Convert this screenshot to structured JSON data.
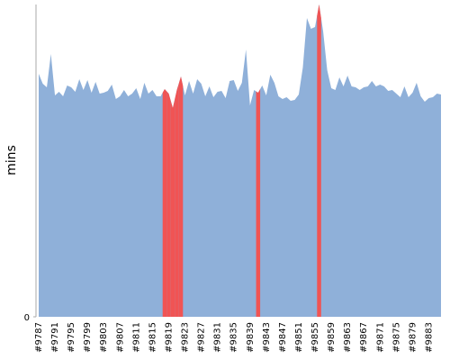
{
  "chart_data": {
    "type": "area",
    "ylabel": "mins",
    "categories": [
      "#9787",
      null,
      null,
      null,
      "#9791",
      null,
      null,
      null,
      "#9795",
      null,
      null,
      null,
      "#9799",
      null,
      null,
      null,
      "#9803",
      null,
      null,
      null,
      "#9807",
      null,
      null,
      null,
      "#9811",
      null,
      null,
      null,
      "#9815",
      null,
      null,
      null,
      "#9819",
      null,
      null,
      null,
      "#9823",
      null,
      null,
      null,
      "#9827",
      null,
      null,
      null,
      "#9831",
      null,
      null,
      null,
      "#9835",
      null,
      null,
      null,
      "#9839",
      null,
      null,
      null,
      "#9843",
      null,
      null,
      null,
      "#9847",
      null,
      null,
      null,
      "#9851",
      null,
      null,
      null,
      "#9855",
      null,
      null,
      null,
      "#9859",
      null,
      null,
      null,
      "#9863",
      null,
      null,
      null,
      "#9867",
      null,
      null,
      null,
      "#9871",
      null,
      null,
      null,
      "#9875",
      null,
      null,
      null,
      "#9879",
      null,
      null,
      null,
      "#9883",
      null,
      null,
      null
    ],
    "values": [
      270,
      259,
      255,
      292,
      246,
      250,
      245,
      257,
      255,
      250,
      264,
      252,
      263,
      249,
      261,
      248,
      249,
      251,
      258,
      242,
      245,
      252,
      245,
      248,
      254,
      242,
      260,
      248,
      252,
      245,
      245,
      253,
      248,
      232,
      252,
      267,
      246,
      262,
      248,
      264,
      259,
      245,
      256,
      244,
      250,
      251,
      243,
      262,
      263,
      251,
      260,
      297,
      235,
      252,
      249,
      257,
      246,
      269,
      260,
      245,
      242,
      244,
      240,
      241,
      247,
      277,
      332,
      320,
      322,
      347,
      317,
      274,
      254,
      252,
      266,
      256,
      268,
      256,
      255,
      252,
      255,
      256,
      262,
      256,
      258,
      256,
      251,
      252,
      248,
      244,
      256,
      244,
      249,
      260,
      245,
      239,
      243,
      244,
      248,
      247
    ],
    "colors": [
      "#8fb0d9",
      "#8fb0d9",
      "#8fb0d9",
      "#8fb0d9",
      "#8fb0d9",
      "#8fb0d9",
      "#8fb0d9",
      "#8fb0d9",
      "#8fb0d9",
      "#8fb0d9",
      "#8fb0d9",
      "#8fb0d9",
      "#8fb0d9",
      "#8fb0d9",
      "#8fb0d9",
      "#8fb0d9",
      "#8fb0d9",
      "#8fb0d9",
      "#8fb0d9",
      "#8fb0d9",
      "#8fb0d9",
      "#8fb0d9",
      "#8fb0d9",
      "#8fb0d9",
      "#8fb0d9",
      "#8fb0d9",
      "#8fb0d9",
      "#8fb0d9",
      "#8fb0d9",
      "#8fb0d9",
      "#8fb0d9",
      "#f05454",
      "#f05454",
      "#f05454",
      "#f05454",
      "#f05454",
      "#8fb0d9",
      "#8fb0d9",
      "#8fb0d9",
      "#8fb0d9",
      "#8fb0d9",
      "#8fb0d9",
      "#8fb0d9",
      "#8fb0d9",
      "#8fb0d9",
      "#8fb0d9",
      "#8fb0d9",
      "#8fb0d9",
      "#8fb0d9",
      "#8fb0d9",
      "#8fb0d9",
      "#8fb0d9",
      "#8fb0d9",
      "#8fb0d9",
      "#f05454",
      "#8fb0d9",
      "#8fb0d9",
      "#8fb0d9",
      "#8fb0d9",
      "#8fb0d9",
      "#8fb0d9",
      "#8fb0d9",
      "#8fb0d9",
      "#8fb0d9",
      "#8fb0d9",
      "#8fb0d9",
      "#8fb0d9",
      "#8fb0d9",
      "#8fb0d9",
      "#f05454",
      "#8fb0d9",
      "#8fb0d9",
      "#8fb0d9",
      "#8fb0d9",
      "#8fb0d9",
      "#8fb0d9",
      "#8fb0d9",
      "#8fb0d9",
      "#8fb0d9",
      "#8fb0d9",
      "#8fb0d9",
      "#8fb0d9",
      "#8fb0d9",
      "#8fb0d9",
      "#8fb0d9",
      "#8fb0d9",
      "#8fb0d9",
      "#8fb0d9",
      "#8fb0d9",
      "#8fb0d9",
      "#8fb0d9",
      "#8fb0d9",
      "#8fb0d9",
      "#8fb0d9",
      "#8fb0d9",
      "#8fb0d9",
      "#8fb0d9",
      "#8fb0d9",
      "#8fb0d9",
      "#8fb0d9"
    ],
    "ylim": [
      0,
      347
    ],
    "yticks": [
      0
    ]
  }
}
